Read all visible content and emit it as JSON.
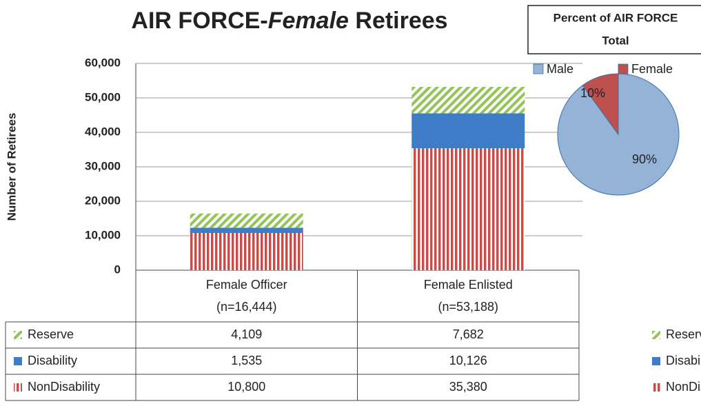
{
  "chart_data": [
    {
      "type": "stacked-bar",
      "title": [
        "AIR FORCE-",
        "Female",
        " Retirees"
      ],
      "y_label": "Number of Retirees",
      "categories": [
        "Female Officer",
        "Female Enlisted"
      ],
      "category_notes": [
        "(n=16,444)",
        "(n=53,188)"
      ],
      "series": [
        {
          "name": "Reserve",
          "color": "#92c456",
          "fill_pattern": "diagonal",
          "values": [
            4109,
            7682
          ],
          "value_labels": [
            "4,109",
            "7,682"
          ]
        },
        {
          "name": "Disability",
          "color": "#3e7cc8",
          "fill_pattern": "solid",
          "values": [
            1535,
            10126
          ],
          "value_labels": [
            "1,535",
            "10,126"
          ]
        },
        {
          "name": "NonDisability",
          "color": "#c0504d",
          "fill_pattern": "vertical",
          "values": [
            10800,
            35380
          ],
          "value_labels": [
            "10,800",
            "35,380"
          ]
        }
      ],
      "ylim": [
        0,
        60000
      ],
      "yticks": [
        0,
        {
          "value": 10000,
          "label": "10,000"
        },
        {
          "value": 20000,
          "label": "20,000"
        },
        {
          "value": 30000,
          "label": "30,000"
        },
        {
          "value": 40000,
          "label": "40,000"
        },
        {
          "value": 50000,
          "label": "50,000"
        },
        {
          "value": 60000,
          "label": "60,000"
        }
      ],
      "grid": true
    },
    {
      "type": "pie",
      "title": [
        "Percent of  AIR FORCE",
        "Total"
      ],
      "categories": [
        "Male",
        "Female"
      ],
      "values": [
        90,
        10
      ],
      "value_labels": [
        "90%",
        "10%"
      ],
      "colors": [
        "#95b3d7",
        "#c0504d"
      ]
    }
  ]
}
